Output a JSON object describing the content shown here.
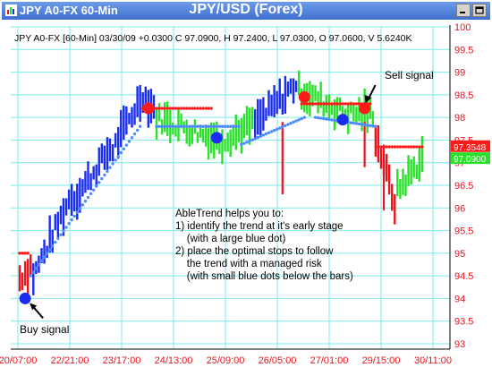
{
  "window": {
    "title": "JPY A0-FX 60-Min",
    "chart_title": "JPY/USD (Forex)"
  },
  "colors": {
    "up_bar": "#2ae02a",
    "down_bar": "#e8141e",
    "neutral_bar": "#1a2cf0",
    "stop_up": "#4a8cff",
    "stop_down": "#ff1a1a",
    "grid": "#7fe8ec",
    "title_bar": "#4a7fe0"
  },
  "chart_data": {
    "type": "bar",
    "title": "JPY/USD (Forex)",
    "info_line": "JPY A0-FX [60-Min] 03/30/09 +0.0300 C 97.0900, H 97.2400, L 97.0300, O 97.0600, V 5.6240K",
    "ylim": [
      93,
      100
    ],
    "y_ticks": [
      "93",
      "93.5",
      "94",
      "94.5",
      "95",
      "95.5",
      "96",
      "96.5",
      "97",
      "97.5",
      "98",
      "98.5",
      "99",
      "99.5",
      "100"
    ],
    "x_ticks": [
      "20/07:00",
      "22/21:00",
      "23/17:00",
      "24/13:00",
      "25/09:00",
      "26/05:00",
      "27/01:00",
      "29/15:00",
      "30/11:00"
    ],
    "price_labels": [
      {
        "value": 97.3548,
        "text": "97.3548",
        "color": "#ff1a1a"
      },
      {
        "value": 97.09,
        "text": "97.0900",
        "color": "#2ae02a"
      }
    ],
    "trend_segments": [
      {
        "from": 0,
        "to": 5,
        "color": "#e8141e",
        "start": 94.45,
        "end": 94.7
      },
      {
        "from": 5,
        "to": 20,
        "color": "#1a2cf0",
        "start": 94.5,
        "end": 96.3
      },
      {
        "from": 20,
        "to": 34,
        "color": "#1a2cf0",
        "start": 96.2,
        "end": 97.3
      },
      {
        "from": 34,
        "to": 46,
        "color": "#1a2cf0",
        "start": 97.3,
        "end": 98.5
      },
      {
        "from": 46,
        "to": 50,
        "color": "#1a2cf0",
        "start": 98.4,
        "end": 98.2
      },
      {
        "from": 50,
        "to": 74,
        "color": "#2ae02a",
        "start": 98.0,
        "end": 97.5
      },
      {
        "from": 74,
        "to": 86,
        "color": "#2ae02a",
        "start": 97.5,
        "end": 97.85
      },
      {
        "from": 86,
        "to": 102,
        "color": "#1a2cf0",
        "start": 97.85,
        "end": 98.75
      },
      {
        "from": 102,
        "to": 118,
        "color": "#2ae02a",
        "start": 98.6,
        "end": 98.15
      },
      {
        "from": 118,
        "to": 130,
        "color": "#2ae02a",
        "start": 98.1,
        "end": 98.1
      },
      {
        "from": 130,
        "to": 138,
        "color": "#e8141e",
        "start": 97.6,
        "end": 96.1
      },
      {
        "from": 138,
        "to": 148,
        "color": "#2ae02a",
        "start": 96.4,
        "end": 97.1
      }
    ],
    "stop_segments": [
      {
        "from": 0,
        "to": 3,
        "color": "#ff1a1a",
        "start": 95.0,
        "end": 95.0
      },
      {
        "from": 4,
        "to": 44,
        "color": "#4a8cff",
        "start": 94.5,
        "end": 97.8
      },
      {
        "from": 45,
        "to": 70,
        "color": "#ff1a1a",
        "start": 98.2,
        "end": 98.2
      },
      {
        "from": 50,
        "to": 80,
        "color": "#4a8cff",
        "start": 97.8,
        "end": 97.8
      },
      {
        "from": 81,
        "to": 104,
        "color": "#4a8cff",
        "start": 97.4,
        "end": 98.0
      },
      {
        "from": 103,
        "to": 128,
        "color": "#ff1a1a",
        "start": 98.3,
        "end": 98.3
      },
      {
        "from": 108,
        "to": 130,
        "color": "#4a8cff",
        "start": 98.0,
        "end": 97.8
      },
      {
        "from": 131,
        "to": 147,
        "color": "#ff1a1a",
        "start": 97.35,
        "end": 97.35
      }
    ],
    "signals": [
      {
        "kind": "buy",
        "value": 94.0,
        "bar": 2,
        "color": "#1a2cf0"
      },
      {
        "kind": "sell",
        "value": 98.2,
        "bar": 47,
        "color": "#ff1a1a"
      },
      {
        "kind": "buy",
        "value": 97.55,
        "bar": 72,
        "color": "#1a2cf0"
      },
      {
        "kind": "sell",
        "value": 98.45,
        "bar": 104,
        "color": "#ff1a1a"
      },
      {
        "kind": "buy",
        "value": 97.95,
        "bar": 118,
        "color": "#1a2cf0"
      },
      {
        "kind": "sell",
        "value": 98.2,
        "bar": 126,
        "color": "#ff1a1a"
      }
    ],
    "annotations": {
      "buy_signal": "Buy signal",
      "sell_signal": "Sell signal",
      "text_lines": [
        "AbleTrend helps you to:",
        "1) identify the trend at it's early stage",
        "    (with a large blue dot)",
        "2) place the optimal stops to follow",
        "    the trend with a managed risk",
        "    (with small blue dots below the bars)"
      ]
    }
  }
}
